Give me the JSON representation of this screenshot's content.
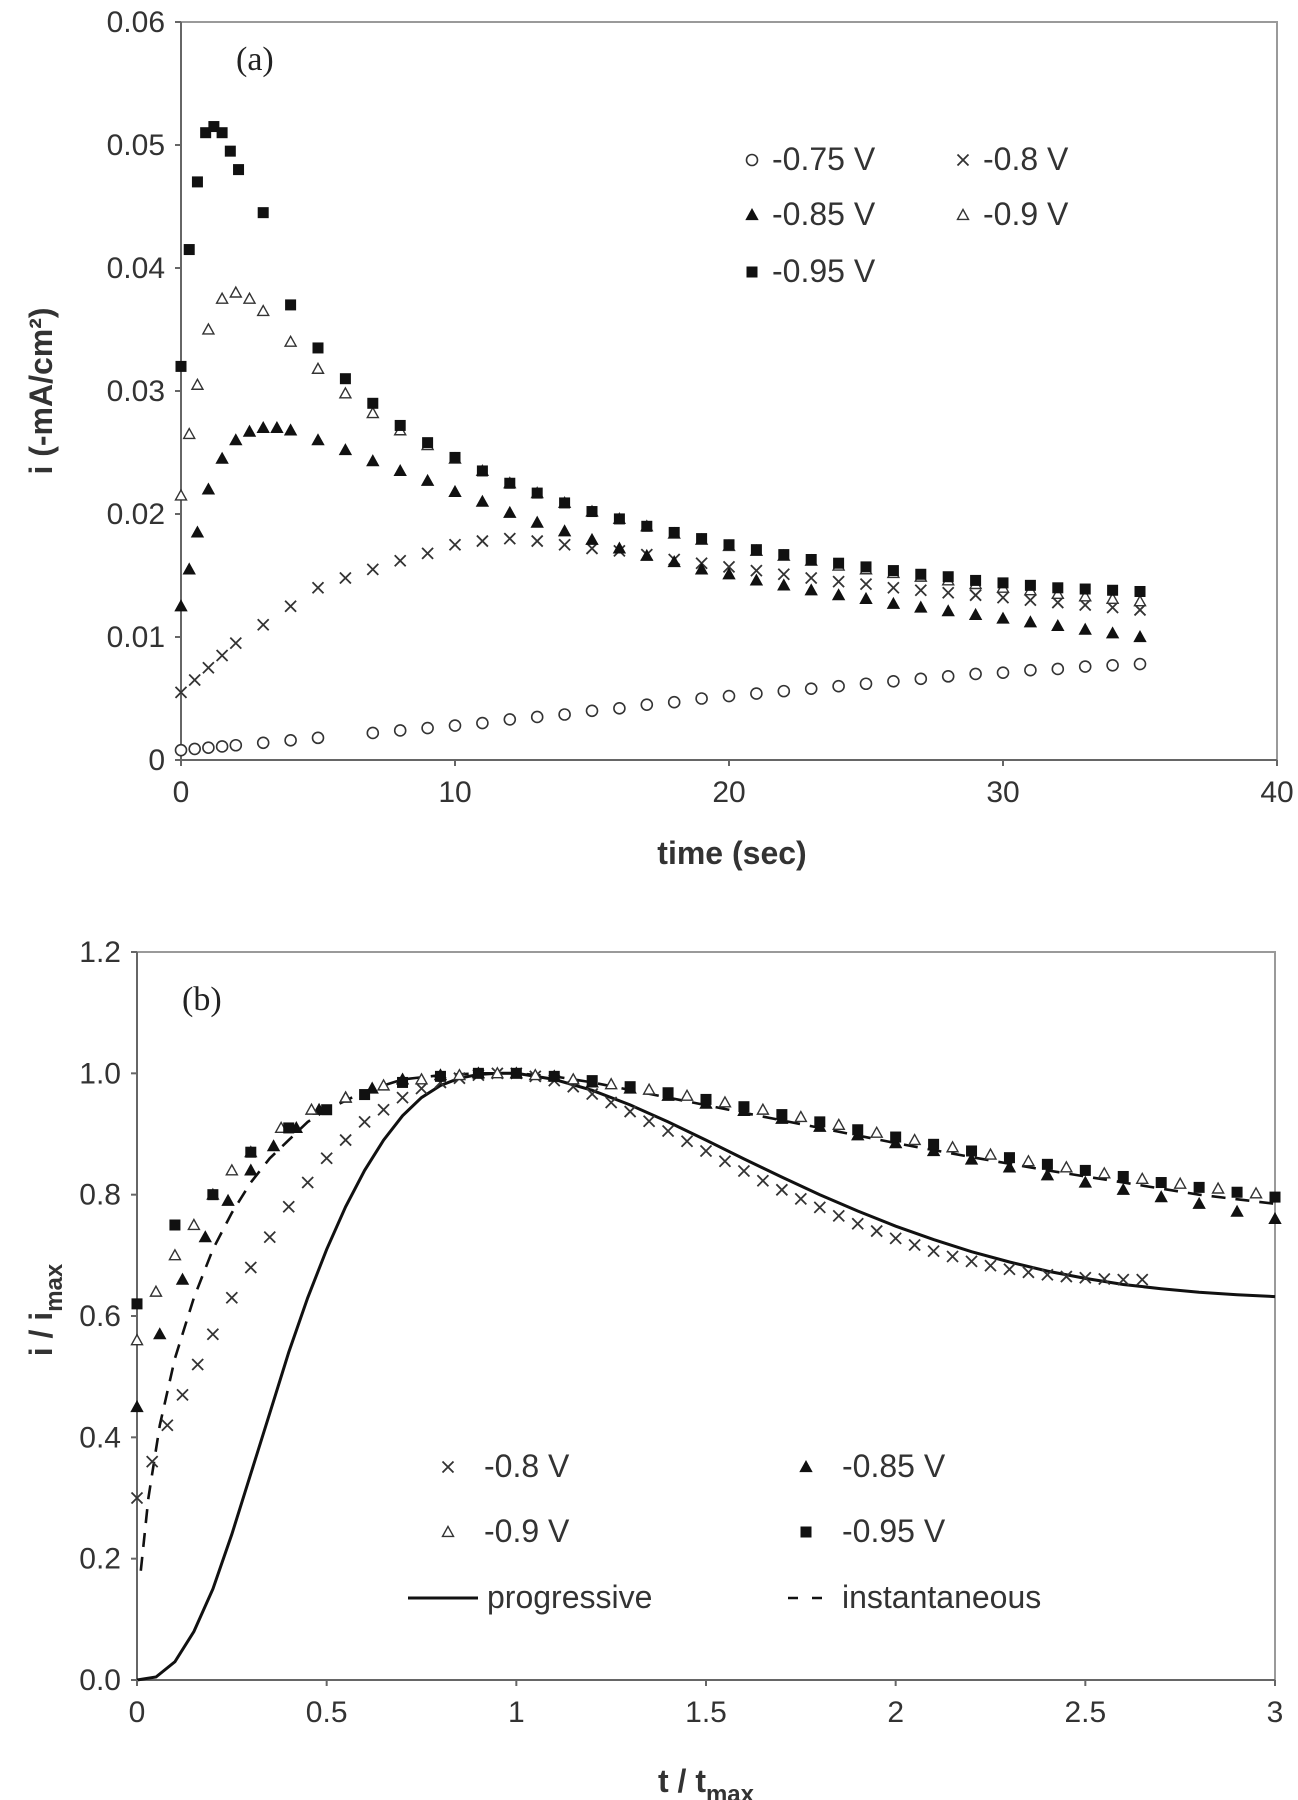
{
  "chart_data": [
    {
      "type": "scatter",
      "panel_label": "(a)",
      "xlabel": "time (sec)",
      "ylabel": "i (-mA/cm²)",
      "xlim": [
        0,
        40
      ],
      "ylim": [
        0,
        0.06
      ],
      "x_ticks": [
        "0",
        "10",
        "20",
        "30",
        "40"
      ],
      "y_ticks": [
        "0",
        "0.01",
        "0.02",
        "0.03",
        "0.04",
        "0.05",
        "0.06"
      ],
      "legend_position": "top-right",
      "series": [
        {
          "name": "-0.75 V",
          "marker": "circle-open",
          "x": [
            0,
            0.5,
            1,
            1.5,
            2,
            3,
            4,
            5,
            7,
            8,
            9,
            10,
            11,
            12,
            13,
            14,
            15,
            16,
            17,
            18,
            19,
            20,
            21,
            22,
            23,
            24,
            25,
            26,
            27,
            28,
            29,
            30,
            31,
            32,
            33,
            34,
            35
          ],
          "y": [
            0.0008,
            0.0009,
            0.001,
            0.0011,
            0.0012,
            0.0014,
            0.0016,
            0.0018,
            0.0022,
            0.0024,
            0.0026,
            0.0028,
            0.003,
            0.0033,
            0.0035,
            0.0037,
            0.004,
            0.0042,
            0.0045,
            0.0047,
            0.005,
            0.0052,
            0.0054,
            0.0056,
            0.0058,
            0.006,
            0.0062,
            0.0064,
            0.0066,
            0.0068,
            0.007,
            0.0071,
            0.0073,
            0.0074,
            0.0076,
            0.0077,
            0.0078
          ]
        },
        {
          "name": "-0.8 V",
          "marker": "x",
          "x": [
            0,
            0.5,
            1,
            1.5,
            2,
            3,
            4,
            5,
            6,
            7,
            8,
            9,
            10,
            11,
            12,
            13,
            14,
            15,
            16,
            17,
            18,
            19,
            20,
            21,
            22,
            23,
            24,
            25,
            26,
            27,
            28,
            29,
            30,
            31,
            32,
            33,
            34,
            35
          ],
          "y": [
            0.0055,
            0.0065,
            0.0075,
            0.0085,
            0.0095,
            0.011,
            0.0125,
            0.014,
            0.0148,
            0.0155,
            0.0162,
            0.0168,
            0.0175,
            0.0178,
            0.018,
            0.0178,
            0.0175,
            0.0172,
            0.017,
            0.0167,
            0.0163,
            0.016,
            0.0157,
            0.0154,
            0.0151,
            0.0148,
            0.0145,
            0.0143,
            0.014,
            0.0138,
            0.0136,
            0.0134,
            0.0132,
            0.013,
            0.0128,
            0.0126,
            0.0124,
            0.0122
          ]
        },
        {
          "name": "-0.85 V",
          "marker": "triangle-filled",
          "x": [
            0,
            0.3,
            0.6,
            1,
            1.5,
            2,
            2.5,
            3,
            3.5,
            4,
            5,
            6,
            7,
            8,
            9,
            10,
            11,
            12,
            13,
            14,
            15,
            16,
            17,
            18,
            19,
            20,
            21,
            22,
            23,
            24,
            25,
            26,
            27,
            28,
            29,
            30,
            31,
            32,
            33,
            34,
            35
          ],
          "y": [
            0.0125,
            0.0155,
            0.0185,
            0.022,
            0.0245,
            0.026,
            0.0267,
            0.027,
            0.027,
            0.0268,
            0.026,
            0.0252,
            0.0243,
            0.0235,
            0.0227,
            0.0218,
            0.021,
            0.0201,
            0.0193,
            0.0186,
            0.0179,
            0.0172,
            0.0166,
            0.0161,
            0.0155,
            0.0151,
            0.0146,
            0.0142,
            0.0138,
            0.0134,
            0.0131,
            0.0127,
            0.0124,
            0.0121,
            0.0118,
            0.0115,
            0.0112,
            0.0109,
            0.0106,
            0.0103,
            0.01
          ]
        },
        {
          "name": "-0.9 V",
          "marker": "triangle-open",
          "x": [
            0,
            0.3,
            0.6,
            1,
            1.5,
            2,
            2.5,
            3,
            4,
            5,
            6,
            7,
            8,
            9,
            10,
            11,
            12,
            13,
            14,
            15,
            16,
            17,
            18,
            19,
            20,
            21,
            22,
            23,
            24,
            25,
            26,
            27,
            28,
            29,
            30,
            31,
            32,
            33,
            34,
            35
          ],
          "y": [
            0.0215,
            0.0265,
            0.0305,
            0.035,
            0.0375,
            0.038,
            0.0375,
            0.0365,
            0.034,
            0.0318,
            0.0298,
            0.0282,
            0.0268,
            0.0256,
            0.0245,
            0.0235,
            0.0225,
            0.0217,
            0.0209,
            0.0202,
            0.0196,
            0.019,
            0.0184,
            0.0179,
            0.0174,
            0.017,
            0.0166,
            0.0162,
            0.0158,
            0.0155,
            0.0152,
            0.0149,
            0.0146,
            0.0143,
            0.014,
            0.0138,
            0.0135,
            0.0133,
            0.0131,
            0.0129
          ]
        },
        {
          "name": "-0.95 V",
          "marker": "square-filled",
          "x": [
            0,
            0.3,
            0.6,
            0.9,
            1.2,
            1.5,
            1.8,
            2.1,
            3,
            4,
            5,
            6,
            7,
            8,
            9,
            10,
            11,
            12,
            13,
            14,
            15,
            16,
            17,
            18,
            19,
            20,
            21,
            22,
            23,
            24,
            25,
            26,
            27,
            28,
            29,
            30,
            31,
            32,
            33,
            34,
            35
          ],
          "y": [
            0.032,
            0.0415,
            0.047,
            0.051,
            0.0515,
            0.051,
            0.0495,
            0.048,
            0.0445,
            0.037,
            0.0335,
            0.031,
            0.029,
            0.0272,
            0.0258,
            0.0246,
            0.0235,
            0.0225,
            0.0217,
            0.0209,
            0.0202,
            0.0196,
            0.019,
            0.0185,
            0.018,
            0.0175,
            0.0171,
            0.0167,
            0.0163,
            0.016,
            0.0157,
            0.0154,
            0.0151,
            0.0149,
            0.0146,
            0.0144,
            0.0142,
            0.014,
            0.0139,
            0.0138,
            0.0137
          ]
        }
      ]
    },
    {
      "type": "scatter",
      "panel_label": "(b)",
      "xlabel_main": "t / t",
      "xlabel_sub": "max",
      "ylabel_main": "i / i",
      "ylabel_sub": "max",
      "xlim": [
        0,
        3
      ],
      "ylim": [
        0,
        1.2
      ],
      "x_ticks": [
        "0",
        "0.5",
        "1",
        "1.5",
        "2",
        "2.5",
        "3"
      ],
      "y_ticks": [
        "0.0",
        "0.2",
        "0.4",
        "0.6",
        "0.8",
        "1.0",
        "1.2"
      ],
      "legend_position": "bottom-center",
      "series": [
        {
          "name": "-0.8 V",
          "marker": "x",
          "x": [
            0,
            0.04,
            0.08,
            0.12,
            0.16,
            0.2,
            0.25,
            0.3,
            0.35,
            0.4,
            0.45,
            0.5,
            0.55,
            0.6,
            0.65,
            0.7,
            0.75,
            0.8,
            0.85,
            0.9,
            0.95,
            1,
            1.05,
            1.1,
            1.15,
            1.2,
            1.25,
            1.3,
            1.35,
            1.4,
            1.45,
            1.5,
            1.55,
            1.6,
            1.65,
            1.7,
            1.75,
            1.8,
            1.85,
            1.9,
            1.95,
            2,
            2.05,
            2.1,
            2.15,
            2.2,
            2.25,
            2.3,
            2.35,
            2.4,
            2.45,
            2.5,
            2.55,
            2.6,
            2.65
          ],
          "y": [
            0.3,
            0.36,
            0.42,
            0.47,
            0.52,
            0.57,
            0.63,
            0.68,
            0.73,
            0.78,
            0.82,
            0.86,
            0.89,
            0.92,
            0.94,
            0.96,
            0.975,
            0.985,
            0.992,
            0.997,
            1,
            1,
            0.995,
            0.988,
            0.978,
            0.966,
            0.952,
            0.937,
            0.921,
            0.905,
            0.888,
            0.872,
            0.855,
            0.839,
            0.823,
            0.808,
            0.793,
            0.779,
            0.765,
            0.752,
            0.74,
            0.728,
            0.717,
            0.707,
            0.698,
            0.69,
            0.683,
            0.677,
            0.672,
            0.668,
            0.665,
            0.663,
            0.661,
            0.66,
            0.66
          ]
        },
        {
          "name": "-0.85 V",
          "marker": "triangle-filled",
          "x": [
            0,
            0.06,
            0.12,
            0.18,
            0.24,
            0.3,
            0.36,
            0.42,
            0.48,
            0.55,
            0.62,
            0.7,
            0.8,
            0.9,
            1,
            1.1,
            1.2,
            1.3,
            1.4,
            1.5,
            1.6,
            1.7,
            1.8,
            1.9,
            2,
            2.1,
            2.2,
            2.3,
            2.4,
            2.5,
            2.6,
            2.7,
            2.8,
            2.9,
            3
          ],
          "y": [
            0.45,
            0.57,
            0.66,
            0.73,
            0.79,
            0.84,
            0.88,
            0.91,
            0.94,
            0.96,
            0.975,
            0.99,
            0.997,
            1,
            1,
            0.995,
            0.985,
            0.975,
            0.963,
            0.95,
            0.938,
            0.925,
            0.912,
            0.898,
            0.885,
            0.872,
            0.858,
            0.845,
            0.832,
            0.82,
            0.808,
            0.796,
            0.785,
            0.772,
            0.76
          ]
        },
        {
          "name": "-0.9 V",
          "marker": "triangle-open",
          "x": [
            0,
            0.05,
            0.1,
            0.15,
            0.2,
            0.25,
            0.3,
            0.38,
            0.46,
            0.55,
            0.65,
            0.75,
            0.85,
            0.95,
            1.05,
            1.15,
            1.25,
            1.35,
            1.45,
            1.55,
            1.65,
            1.75,
            1.85,
            1.95,
            2.05,
            2.15,
            2.25,
            2.35,
            2.45,
            2.55,
            2.65,
            2.75,
            2.85,
            2.95
          ],
          "y": [
            0.56,
            0.64,
            0.7,
            0.75,
            0.8,
            0.84,
            0.87,
            0.91,
            0.94,
            0.96,
            0.98,
            0.99,
            0.997,
            1,
            0.997,
            0.99,
            0.982,
            0.973,
            0.963,
            0.952,
            0.94,
            0.928,
            0.915,
            0.902,
            0.89,
            0.878,
            0.866,
            0.855,
            0.845,
            0.835,
            0.826,
            0.818,
            0.81,
            0.802
          ]
        },
        {
          "name": "-0.95 V",
          "marker": "square-filled",
          "x": [
            0,
            0.1,
            0.2,
            0.3,
            0.4,
            0.5,
            0.6,
            0.7,
            0.8,
            0.9,
            1,
            1.1,
            1.2,
            1.3,
            1.4,
            1.5,
            1.6,
            1.7,
            1.8,
            1.9,
            2,
            2.1,
            2.2,
            2.3,
            2.4,
            2.5,
            2.6,
            2.7,
            2.8,
            2.9,
            3
          ],
          "y": [
            0.62,
            0.75,
            0.8,
            0.87,
            0.91,
            0.94,
            0.965,
            0.985,
            0.995,
            1,
            1,
            0.995,
            0.988,
            0.978,
            0.968,
            0.957,
            0.945,
            0.932,
            0.92,
            0.907,
            0.895,
            0.883,
            0.872,
            0.861,
            0.85,
            0.84,
            0.83,
            0.82,
            0.812,
            0.804,
            0.796
          ]
        },
        {
          "name": "progressive",
          "marker": "line-solid",
          "x": [
            0,
            0.05,
            0.1,
            0.15,
            0.2,
            0.25,
            0.3,
            0.35,
            0.4,
            0.45,
            0.5,
            0.55,
            0.6,
            0.65,
            0.7,
            0.75,
            0.8,
            0.85,
            0.9,
            0.95,
            1,
            1.1,
            1.2,
            1.3,
            1.4,
            1.5,
            1.6,
            1.7,
            1.8,
            1.9,
            2,
            2.1,
            2.2,
            2.3,
            2.4,
            2.5,
            2.6,
            2.7,
            2.8,
            2.9,
            3
          ],
          "y": [
            0,
            0.005,
            0.03,
            0.08,
            0.15,
            0.24,
            0.34,
            0.44,
            0.54,
            0.63,
            0.71,
            0.78,
            0.84,
            0.89,
            0.93,
            0.96,
            0.98,
            0.992,
            0.998,
            1,
            1,
            0.99,
            0.972,
            0.948,
            0.92,
            0.89,
            0.859,
            0.829,
            0.8,
            0.773,
            0.748,
            0.726,
            0.706,
            0.689,
            0.674,
            0.662,
            0.652,
            0.645,
            0.639,
            0.635,
            0.632
          ]
        },
        {
          "name": "instantaneous",
          "marker": "line-dashed",
          "x": [
            0.01,
            0.03,
            0.06,
            0.1,
            0.15,
            0.2,
            0.25,
            0.3,
            0.35,
            0.4,
            0.45,
            0.5,
            0.6,
            0.7,
            0.8,
            0.9,
            1,
            1.1,
            1.2,
            1.4,
            1.6,
            1.8,
            2,
            2.2,
            2.4,
            2.6,
            2.8,
            3
          ],
          "y": [
            0.18,
            0.3,
            0.42,
            0.53,
            0.63,
            0.71,
            0.77,
            0.82,
            0.86,
            0.89,
            0.92,
            0.94,
            0.97,
            0.99,
            0.997,
            1,
            1,
            0.995,
            0.985,
            0.96,
            0.935,
            0.91,
            0.885,
            0.862,
            0.84,
            0.82,
            0.8,
            0.785
          ]
        }
      ]
    }
  ]
}
